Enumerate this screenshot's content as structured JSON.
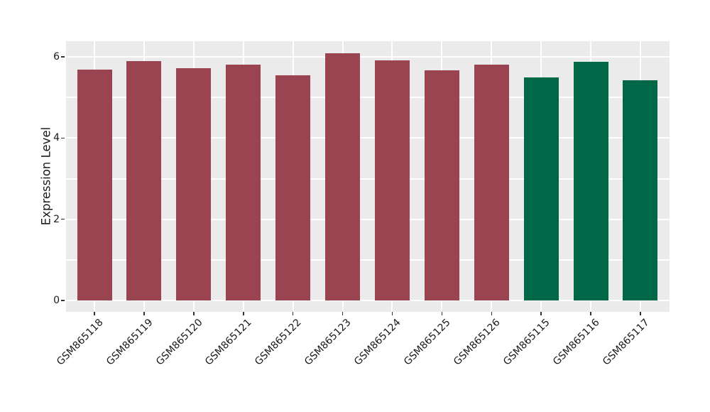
{
  "chart_data": {
    "type": "bar",
    "title": "",
    "xlabel": "",
    "ylabel": "Expression Level",
    "categories": [
      "GSM865118",
      "GSM865119",
      "GSM865120",
      "GSM865121",
      "GSM865122",
      "GSM865123",
      "GSM865124",
      "GSM865125",
      "GSM865126",
      "GSM865115",
      "GSM865116",
      "GSM865117"
    ],
    "values": [
      5.69,
      5.9,
      5.72,
      5.81,
      5.55,
      6.09,
      5.92,
      5.67,
      5.81,
      5.5,
      5.87,
      5.43
    ],
    "bar_colors": [
      "#9A4452",
      "#9A4452",
      "#9A4452",
      "#9A4452",
      "#9A4452",
      "#9A4452",
      "#9A4452",
      "#9A4452",
      "#9A4452",
      "#006747",
      "#006747",
      "#006747"
    ],
    "ytick_labels": [
      "0",
      "2",
      "4",
      "6"
    ],
    "ytick_values": [
      0,
      2,
      4,
      6
    ],
    "gridline_values": [
      0,
      1,
      2,
      3,
      4,
      5,
      6
    ],
    "ylim": [
      -0.28,
      6.38
    ],
    "grid": true,
    "legend": false,
    "colors": {
      "bar_group_main": "#9A4452",
      "bar_group_alt": "#006747",
      "panel_background": "#EBEBEB",
      "grid": "#FFFFFF",
      "text": "#1A1A1A",
      "figure_background": "#FFFFFF"
    }
  }
}
